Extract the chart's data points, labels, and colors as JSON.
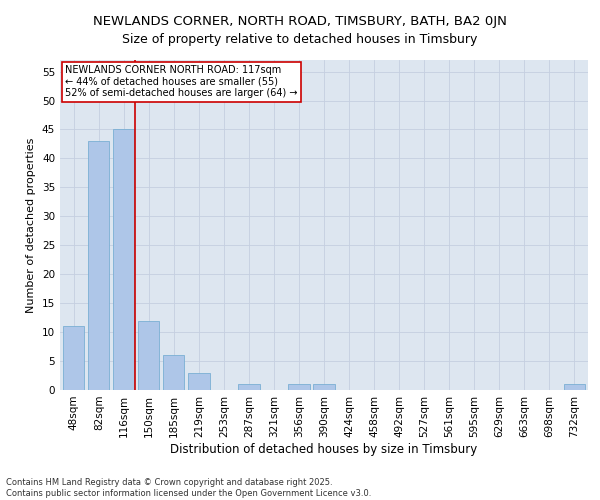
{
  "title": "NEWLANDS CORNER, NORTH ROAD, TIMSBURY, BATH, BA2 0JN",
  "subtitle": "Size of property relative to detached houses in Timsbury",
  "xlabel": "Distribution of detached houses by size in Timsbury",
  "ylabel": "Number of detached properties",
  "categories": [
    "48sqm",
    "82sqm",
    "116sqm",
    "150sqm",
    "185sqm",
    "219sqm",
    "253sqm",
    "287sqm",
    "321sqm",
    "356sqm",
    "390sqm",
    "424sqm",
    "458sqm",
    "492sqm",
    "527sqm",
    "561sqm",
    "595sqm",
    "629sqm",
    "663sqm",
    "698sqm",
    "732sqm"
  ],
  "values": [
    11,
    43,
    45,
    12,
    6,
    3,
    0,
    1,
    0,
    1,
    1,
    0,
    0,
    0,
    0,
    0,
    0,
    0,
    0,
    0,
    1
  ],
  "bar_color": "#aec6e8",
  "bar_edge_color": "#7aafd4",
  "vline_color": "#cc0000",
  "vline_x": 2.45,
  "ylim": [
    0,
    57
  ],
  "yticks": [
    0,
    5,
    10,
    15,
    20,
    25,
    30,
    35,
    40,
    45,
    50,
    55
  ],
  "annotation_text": "NEWLANDS CORNER NORTH ROAD: 117sqm\n← 44% of detached houses are smaller (55)\n52% of semi-detached houses are larger (64) →",
  "annotation_box_facecolor": "#ffffff",
  "annotation_box_edgecolor": "#cc0000",
  "background_color": "#dde6f0",
  "grid_color": "#c5cfe0",
  "footer_line1": "Contains HM Land Registry data © Crown copyright and database right 2025.",
  "footer_line2": "Contains public sector information licensed under the Open Government Licence v3.0.",
  "title_fontsize": 9.5,
  "subtitle_fontsize": 9,
  "xlabel_fontsize": 8.5,
  "ylabel_fontsize": 8,
  "tick_fontsize": 7.5,
  "annot_fontsize": 7,
  "footer_fontsize": 6
}
